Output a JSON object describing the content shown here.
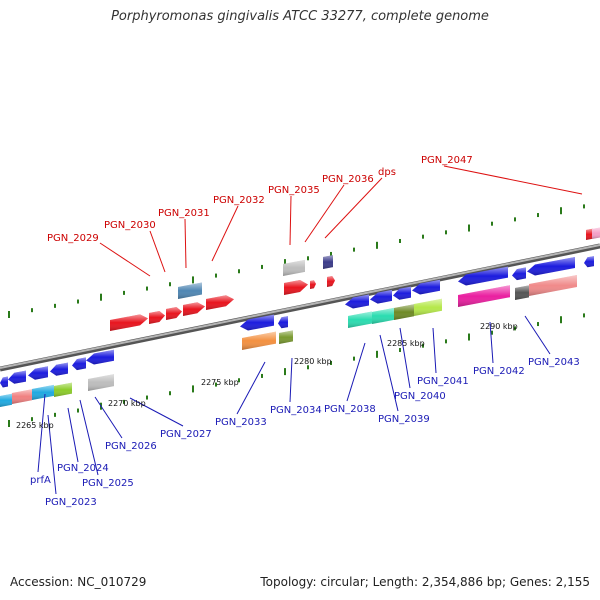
{
  "title": "Porphyromonas gingivalis ATCC 33277, complete genome",
  "accession": "Accession: NC_010729",
  "stats": "Topology: circular; Length: 2,354,886 bp; Genes: 2,155",
  "colors": {
    "background": "#ffffff",
    "label_red": "#cc0000",
    "label_blue": "#1a1ab5",
    "dots": "#2a7a1a",
    "backbone": "#808080"
  },
  "kbp_labels": [
    "2265 kbp",
    "2270 kbp",
    "2275 kbp",
    "2280 kbp",
    "2285 kbp",
    "2290 kbp"
  ],
  "upper_labels": [
    "PGN_2029",
    "PGN_2030",
    "PGN_2031",
    "PGN_2032",
    "PGN_2035",
    "PGN_2036",
    "dps",
    "PGN_2047"
  ],
  "lower_labels": [
    "prfA",
    "PGN_2023",
    "PGN_2024",
    "PGN_2025",
    "PGN_2026",
    "PGN_2027",
    "PGN_2033",
    "PGN_2034",
    "PGN_2038",
    "PGN_2039",
    "PGN_2040",
    "PGN_2041",
    "PGN_2042",
    "PGN_2043"
  ]
}
